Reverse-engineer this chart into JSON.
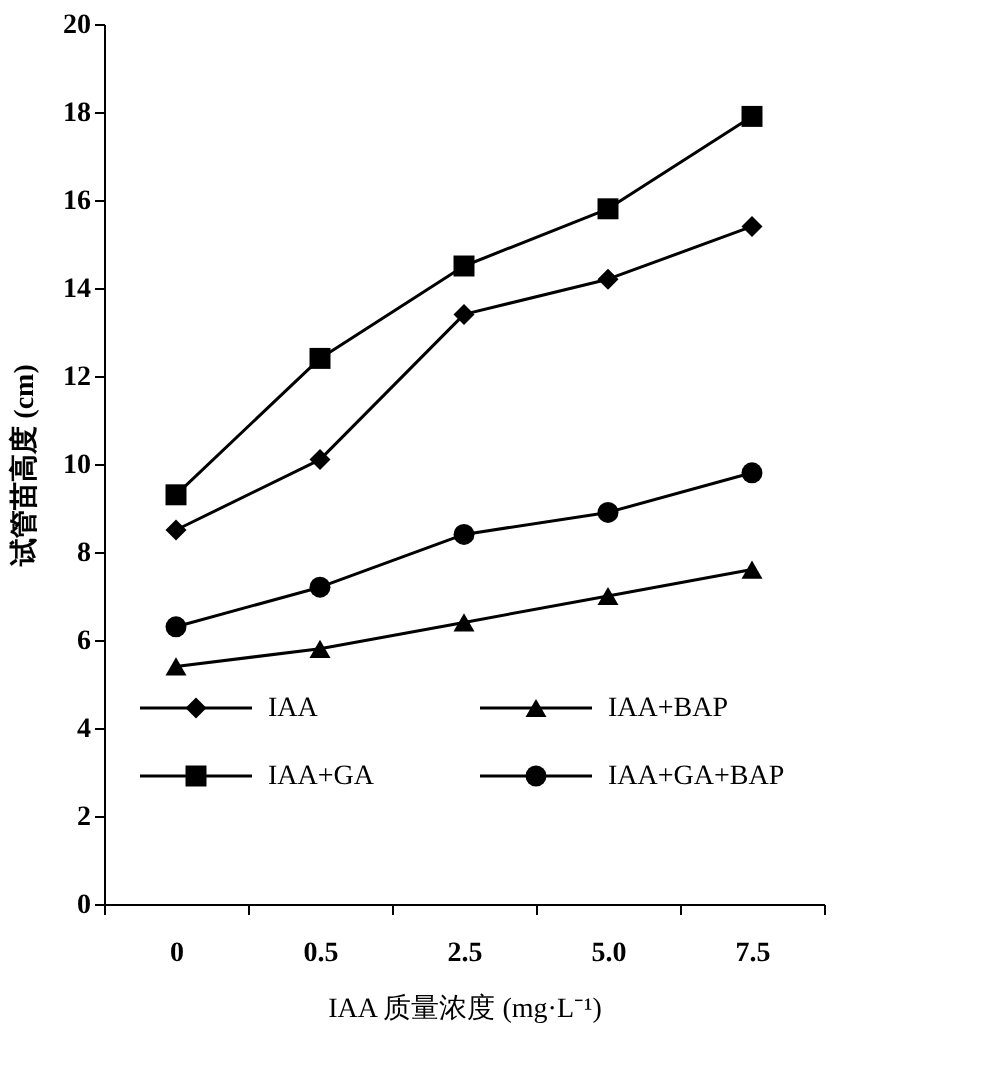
{
  "chart_data": {
    "type": "line",
    "xlabel": "IAA 质量浓度 (mg·L⁻¹)",
    "ylabel": "试管苗高度 (cm)",
    "categories": [
      "0",
      "0.5",
      "2.5",
      "5.0",
      "7.5"
    ],
    "series": [
      {
        "name": "IAA",
        "color": "#000000",
        "marker": "diamond",
        "values": [
          8.5,
          10.1,
          13.4,
          14.2,
          15.4
        ]
      },
      {
        "name": "IAA+BAP",
        "color": "#000000",
        "marker": "triangle",
        "values": [
          5.4,
          5.8,
          6.4,
          7.0,
          7.6
        ]
      },
      {
        "name": "IAA+GA",
        "color": "#000000",
        "marker": "square",
        "values": [
          9.3,
          12.4,
          14.5,
          15.8,
          17.9
        ]
      },
      {
        "name": "IAA+GA+BAP",
        "color": "#000000",
        "marker": "circle",
        "values": [
          6.3,
          7.2,
          8.4,
          8.9,
          9.8
        ]
      }
    ],
    "ylim": [
      0,
      20
    ],
    "yticks": [
      0,
      2,
      4,
      6,
      8,
      10,
      12,
      14,
      16,
      18,
      20
    ],
    "grid": false,
    "legend": "bottom",
    "line_style": "solid"
  }
}
